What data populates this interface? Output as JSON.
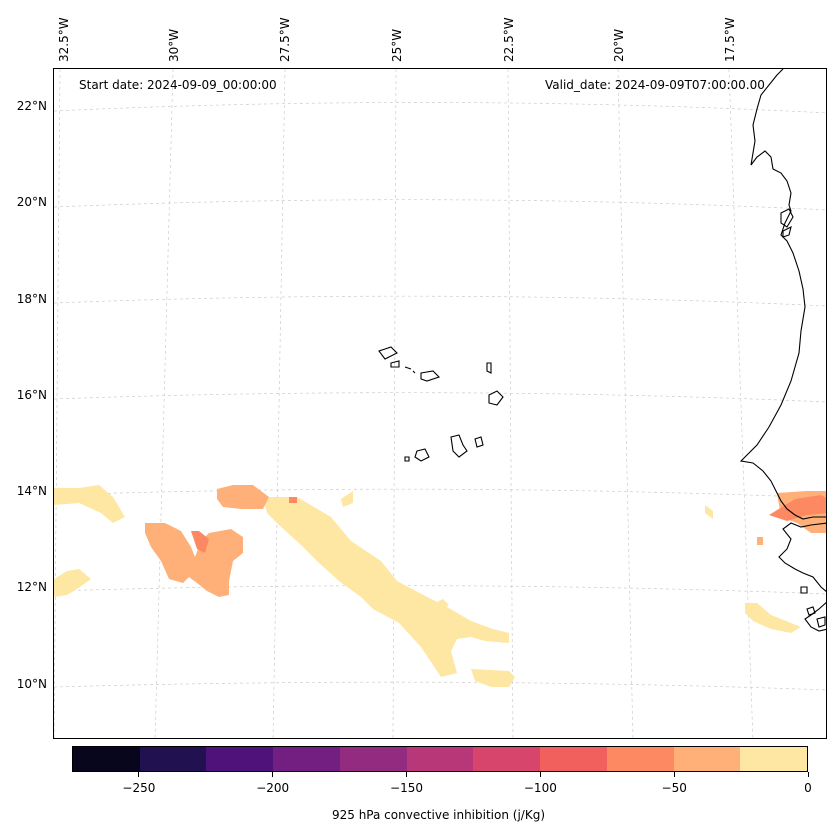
{
  "map": {
    "start_date": "Start date: 2024-09-09_00:00:00",
    "valid_date": "Valid_date: 2024-09-09T07:00:00.00",
    "lon_labels": [
      "32.5°W",
      "30°W",
      "27.5°W",
      "25°W",
      "22.5°W",
      "20°W",
      "17.5°W"
    ],
    "lat_labels": [
      "22°N",
      "20°N",
      "18°N",
      "16°N",
      "14°N",
      "12°N",
      "10°N"
    ],
    "gridlines": true,
    "coastline_color": "#000000"
  },
  "colorbar": {
    "label": "925 hPa convective inhibition (j/Kg)",
    "min": -275,
    "max": 0,
    "ticks": [
      "−250",
      "−200",
      "−150",
      "−100",
      "−50",
      "0"
    ],
    "tick_values": [
      -250,
      -200,
      -150,
      -100,
      -50,
      0
    ],
    "colors": [
      "#07061c",
      "#221150",
      "#4f127b",
      "#721f81",
      "#932b80",
      "#b73779",
      "#d8456c",
      "#f1605d",
      "#fc8961",
      "#feb078",
      "#fee7a3"
    ]
  }
}
